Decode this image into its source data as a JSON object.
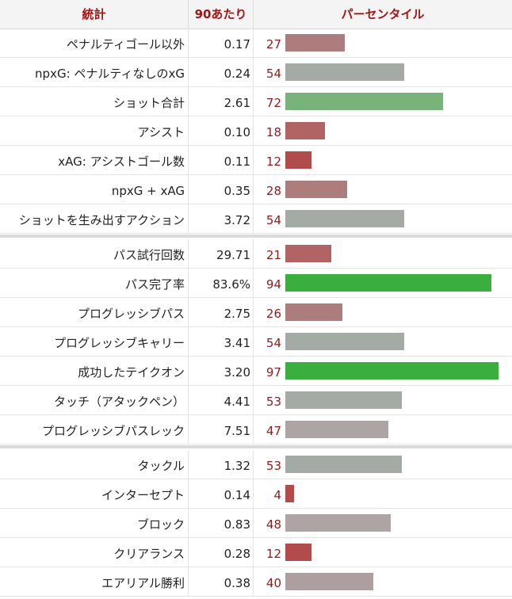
{
  "headers": {
    "stat": "統計",
    "per90": "90あたり",
    "percentile": "パーセンタイル"
  },
  "groups": [
    [
      {
        "label": "ペナルティゴール以外",
        "per90": "0.17",
        "percentile": 27,
        "color": "#ad7d7d"
      },
      {
        "label": "npxG: ペナルティなしのxG",
        "per90": "0.24",
        "percentile": 54,
        "color": "#a4aba4"
      },
      {
        "label": "ショット合計",
        "per90": "2.61",
        "percentile": 72,
        "color": "#79b27a"
      },
      {
        "label": "アシスト",
        "per90": "0.10",
        "percentile": 18,
        "color": "#b06464"
      },
      {
        "label": "xAG: アシストゴール数",
        "per90": "0.11",
        "percentile": 12,
        "color": "#b24b4b"
      },
      {
        "label": "npxG + xAG",
        "per90": "0.35",
        "percentile": 28,
        "color": "#ad7d7d"
      },
      {
        "label": "ショットを生み出すアクション",
        "per90": "3.72",
        "percentile": 54,
        "color": "#a4aba4"
      }
    ],
    [
      {
        "label": "パス試行回数",
        "per90": "29.71",
        "percentile": 21,
        "color": "#b06464"
      },
      {
        "label": "パス完了率",
        "per90": "83.6%",
        "percentile": 94,
        "color": "#3aaf3f"
      },
      {
        "label": "プログレッシブパス",
        "per90": "2.75",
        "percentile": 26,
        "color": "#ad7d7d"
      },
      {
        "label": "プログレッシブキャリー",
        "per90": "3.41",
        "percentile": 54,
        "color": "#a4aba4"
      },
      {
        "label": "成功したテイクオン",
        "per90": "3.20",
        "percentile": 97,
        "color": "#3aaf3f"
      },
      {
        "label": "タッチ（アタックペン）",
        "per90": "4.41",
        "percentile": 53,
        "color": "#a4aba4"
      },
      {
        "label": "プログレッシブパスレック",
        "per90": "7.51",
        "percentile": 47,
        "color": "#ada4a4"
      }
    ],
    [
      {
        "label": "タックル",
        "per90": "1.32",
        "percentile": 53,
        "color": "#a4aba4"
      },
      {
        "label": "インターセプト",
        "per90": "0.14",
        "percentile": 4,
        "color": "#b24b4b"
      },
      {
        "label": "ブロック",
        "per90": "0.83",
        "percentile": 48,
        "color": "#ada4a4"
      },
      {
        "label": "クリアランス",
        "per90": "0.28",
        "percentile": 12,
        "color": "#b24b4b"
      },
      {
        "label": "エアリアル勝利",
        "per90": "0.38",
        "percentile": 40,
        "color": "#ad9ea0"
      }
    ]
  ]
}
